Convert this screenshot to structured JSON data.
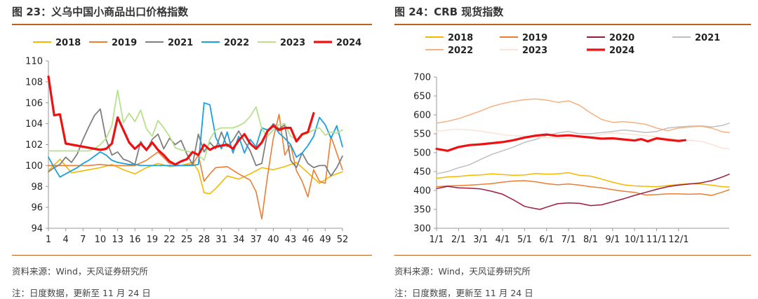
{
  "left": {
    "title": "图 23：义乌中国小商品出口价格指数",
    "source": "资料来源：Wind，天风证券研究所",
    "note": "注：日度数据，更新至 11 月 24 日",
    "chart_data": {
      "type": "line",
      "xlabel": "",
      "ylabel": "",
      "ylim": [
        94,
        110
      ],
      "yticks": [
        94,
        96,
        98,
        100,
        102,
        104,
        106,
        108,
        110
      ],
      "xlim": [
        1,
        52
      ],
      "xticks": [
        1,
        4,
        7,
        10,
        13,
        16,
        19,
        22,
        25,
        28,
        31,
        34,
        37,
        40,
        43,
        46,
        49,
        52
      ],
      "legend_position": "top",
      "series": [
        {
          "name": "2018",
          "color": "#f5b800",
          "width": 1.6,
          "x": [
            1,
            3,
            5,
            8,
            10,
            12,
            14,
            16,
            18,
            20,
            22,
            24,
            26,
            27,
            28,
            29,
            30,
            32,
            34,
            36,
            38,
            40,
            42,
            44,
            46,
            48,
            50,
            52
          ],
          "values": [
            99.5,
            100.6,
            99.3,
            99.6,
            99.8,
            100.1,
            99.6,
            99.2,
            99.8,
            100.2,
            99.9,
            100.0,
            100.3,
            99.5,
            97.4,
            97.3,
            97.8,
            99.0,
            98.7,
            99.2,
            99.8,
            99.6,
            99.9,
            100.3,
            99.3,
            98.3,
            99.0,
            99.4
          ]
        },
        {
          "name": "2019",
          "color": "#ed7d31",
          "width": 1.6,
          "x": [
            1,
            3,
            5,
            8,
            10,
            12,
            14,
            16,
            18,
            20,
            22,
            24,
            26,
            27,
            28,
            29,
            30,
            32,
            34,
            36,
            37,
            38,
            39,
            40,
            41,
            42,
            43,
            44,
            45,
            46,
            47,
            48,
            49,
            50,
            52
          ],
          "values": [
            100.0,
            100.0,
            100.0,
            100.0,
            100.1,
            100.0,
            100.0,
            100.0,
            100.5,
            101.3,
            100.2,
            100.0,
            100.1,
            101.0,
            98.5,
            99.2,
            99.8,
            99.9,
            99.2,
            98.6,
            97.5,
            94.9,
            99.0,
            102.6,
            104.9,
            101.0,
            102.0,
            99.5,
            98.5,
            97.0,
            99.6,
            98.5,
            98.3,
            102.8,
            99.6
          ]
        },
        {
          "name": "2021",
          "color": "#7f7f7f",
          "width": 1.8,
          "x": [
            1,
            2,
            3,
            4,
            5,
            6,
            7,
            8,
            9,
            10,
            11,
            12,
            13,
            14,
            15,
            16,
            17,
            18,
            19,
            20,
            21,
            22,
            23,
            24,
            25,
            26,
            27,
            28,
            29,
            30,
            31,
            32,
            33,
            34,
            35,
            36,
            37,
            38,
            39,
            40,
            41,
            42,
            43,
            44,
            45,
            46,
            47,
            48,
            49,
            50,
            51,
            52
          ],
          "values": [
            99.4,
            99.8,
            100.1,
            100.8,
            100.3,
            101.1,
            102.5,
            103.7,
            104.8,
            105.4,
            102.5,
            101.0,
            101.3,
            100.6,
            100.4,
            100.1,
            102.3,
            101.4,
            102.5,
            103.0,
            101.6,
            102.6,
            102.0,
            102.4,
            101.1,
            100.1,
            103.0,
            101.3,
            102.2,
            101.6,
            103.2,
            101.8,
            102.4,
            103.3,
            102.3,
            101.4,
            100.0,
            100.2,
            103.2,
            104.0,
            103.5,
            103.9,
            100.5,
            99.8,
            101.2,
            100.2,
            99.8,
            100.0,
            100.0,
            99.0,
            99.8,
            100.9
          ]
        },
        {
          "name": "2022",
          "color": "#1aa0e0",
          "width": 1.8,
          "x": [
            1,
            2,
            3,
            4,
            5,
            6,
            7,
            8,
            9,
            10,
            11,
            12,
            13,
            14,
            15,
            16,
            17,
            18,
            19,
            20,
            21,
            22,
            23,
            24,
            25,
            26,
            27,
            28,
            29,
            30,
            31,
            32,
            33,
            34,
            35,
            36,
            37,
            38,
            39,
            40,
            41,
            42,
            43,
            44,
            45,
            46,
            47,
            48,
            49,
            50,
            51,
            52
          ],
          "values": [
            100.8,
            99.8,
            98.9,
            99.2,
            99.5,
            99.8,
            100.2,
            100.5,
            100.9,
            101.3,
            101.0,
            100.5,
            100.3,
            100.2,
            100.1,
            100.1,
            100.0,
            100.0,
            100.0,
            100.0,
            100.0,
            100.0,
            100.0,
            100.0,
            100.0,
            100.0,
            100.1,
            106.0,
            105.8,
            102.7,
            101.6,
            103.2,
            101.2,
            102.8,
            101.2,
            102.5,
            101.8,
            103.6,
            103.4,
            103.9,
            103.1,
            102.6,
            102.0,
            100.8,
            101.2,
            101.9,
            102.8,
            104.6,
            103.9,
            102.6,
            103.8,
            101.8
          ]
        },
        {
          "name": "2023",
          "color": "#b8e08d",
          "width": 1.8,
          "x": [
            1,
            2,
            3,
            4,
            5,
            6,
            7,
            8,
            9,
            10,
            11,
            12,
            13,
            14,
            15,
            16,
            17,
            18,
            19,
            20,
            21,
            22,
            23,
            24,
            25,
            26,
            27,
            28,
            29,
            30,
            31,
            32,
            33,
            34,
            35,
            36,
            37,
            38,
            39,
            40,
            41,
            42,
            43,
            44,
            45,
            46,
            47,
            48,
            49,
            50,
            51,
            52
          ],
          "values": [
            101.4,
            101.4,
            101.4,
            101.4,
            101.4,
            101.4,
            101.4,
            101.4,
            101.6,
            102.0,
            102.6,
            103.8,
            107.2,
            104.1,
            105.0,
            104.2,
            105.3,
            103.5,
            102.8,
            104.3,
            103.6,
            102.8,
            101.7,
            101.5,
            101.4,
            101.2,
            101.0,
            100.5,
            102.5,
            103.4,
            103.6,
            103.6,
            103.6,
            103.8,
            104.1,
            104.7,
            105.6,
            103.5,
            102.8,
            103.4,
            103.9,
            104.0,
            102.8,
            102.5,
            102.9,
            103.1,
            103.4,
            103.6,
            102.9,
            103.2,
            103.1,
            103.4
          ]
        },
        {
          "name": "2024",
          "color": "#ee1111",
          "width": 3.2,
          "x": [
            1,
            2,
            3,
            4,
            5,
            6,
            7,
            8,
            9,
            10,
            11,
            12,
            13,
            14,
            15,
            16,
            17,
            18,
            19,
            20,
            21,
            22,
            23,
            24,
            25,
            26,
            27,
            28,
            29,
            30,
            31,
            32,
            33,
            34,
            35,
            36,
            37,
            38,
            39,
            40,
            41,
            42,
            43,
            44,
            45,
            46,
            47
          ],
          "values": [
            108.5,
            104.8,
            104.9,
            102.1,
            102.0,
            101.9,
            101.8,
            101.7,
            101.6,
            101.5,
            101.6,
            102.1,
            104.6,
            103.4,
            102.2,
            101.6,
            102.1,
            101.5,
            102.2,
            101.5,
            101.0,
            100.4,
            100.1,
            100.4,
            100.6,
            101.3,
            101.0,
            102.0,
            101.5,
            101.8,
            101.9,
            102.0,
            101.6,
            102.4,
            103.0,
            102.1,
            101.6,
            102.2,
            103.3,
            103.8,
            103.4,
            103.6,
            103.6,
            102.3,
            103.0,
            103.2,
            105.0
          ]
        }
      ]
    }
  },
  "right": {
    "title": "图 24：CRB 现货指数",
    "source": "资料来源：Wind，天风证券研究所",
    "note": "注：日度数据，更新至 11 月 24 日",
    "chart_data": {
      "type": "line",
      "xlabel": "",
      "ylabel": "",
      "ylim": [
        300,
        700
      ],
      "yticks": [
        300,
        350,
        400,
        450,
        500,
        550,
        600,
        650,
        700
      ],
      "xticks_labels": [
        "1/1",
        "2/1",
        "3/1",
        "4/1",
        "5/1",
        "6/1",
        "7/1",
        "8/1",
        "9/1",
        "10/1",
        "11/1",
        "12/1"
      ],
      "xlim": [
        0,
        13.3
      ],
      "legend_position": "top",
      "series": [
        {
          "name": "2018",
          "color": "#f5b800",
          "width": 1.5,
          "x": [
            0,
            0.5,
            1,
            1.5,
            2,
            2.5,
            3,
            3.5,
            4,
            4.5,
            5,
            5.5,
            6,
            6.5,
            7,
            7.5,
            8,
            8.5,
            9,
            9.5,
            10,
            10.5,
            11,
            11.5,
            12,
            12.5,
            13,
            13.3
          ],
          "values": [
            432,
            436,
            437,
            440,
            441,
            444,
            442,
            440,
            441,
            445,
            443,
            444,
            447,
            440,
            438,
            430,
            422,
            415,
            412,
            411,
            410,
            413,
            416,
            418,
            417,
            414,
            410,
            409
          ]
        },
        {
          "name": "2019",
          "color": "#ed7d31",
          "width": 1.5,
          "x": [
            0,
            0.5,
            1,
            1.5,
            2,
            2.5,
            3,
            3.5,
            4,
            4.5,
            5,
            5.5,
            6,
            6.5,
            7,
            7.5,
            8,
            8.5,
            9,
            9.5,
            10,
            10.5,
            11,
            11.5,
            12,
            12.5,
            13,
            13.3
          ],
          "values": [
            410,
            412,
            413,
            414,
            416,
            418,
            422,
            425,
            426,
            423,
            418,
            415,
            417,
            414,
            410,
            407,
            402,
            398,
            395,
            388,
            389,
            391,
            391,
            390,
            391,
            387,
            396,
            402
          ]
        },
        {
          "name": "2020",
          "color": "#9b1b3d",
          "width": 1.5,
          "x": [
            0,
            0.5,
            1,
            1.5,
            2,
            2.5,
            3,
            3.5,
            4,
            4.3,
            4.7,
            5,
            5.5,
            6,
            6.5,
            7,
            7.5,
            8,
            8.5,
            9,
            9.5,
            10,
            10.5,
            11,
            11.5,
            12,
            12.5,
            13,
            13.3
          ],
          "values": [
            405,
            411,
            407,
            406,
            404,
            398,
            390,
            375,
            358,
            354,
            350,
            356,
            365,
            367,
            366,
            360,
            362,
            370,
            378,
            387,
            395,
            403,
            410,
            414,
            417,
            420,
            426,
            436,
            443
          ]
        },
        {
          "name": "2021",
          "color": "#bfbfbf",
          "width": 1.5,
          "x": [
            0,
            0.5,
            1,
            1.5,
            2,
            2.5,
            3,
            3.5,
            4,
            4.5,
            5,
            5.5,
            6,
            6.5,
            7,
            7.5,
            8,
            8.5,
            9,
            9.5,
            10,
            10.5,
            11,
            11.5,
            12,
            12.5,
            13,
            13.3
          ],
          "values": [
            444,
            450,
            460,
            468,
            482,
            495,
            505,
            515,
            527,
            535,
            545,
            552,
            556,
            550,
            550,
            553,
            556,
            560,
            557,
            553,
            556,
            565,
            568,
            570,
            571,
            568,
            572,
            578
          ]
        },
        {
          "name": "2022",
          "color": "#f4b183",
          "width": 1.5,
          "x": [
            0,
            0.5,
            1,
            1.5,
            2,
            2.5,
            3,
            3.5,
            4,
            4.5,
            5,
            5.5,
            6,
            6.5,
            7,
            7.5,
            8,
            8.5,
            9,
            9.5,
            10,
            10.5,
            11,
            11.5,
            12,
            12.5,
            13,
            13.3
          ],
          "values": [
            578,
            583,
            590,
            600,
            610,
            622,
            630,
            636,
            640,
            642,
            639,
            633,
            637,
            625,
            605,
            588,
            580,
            582,
            579,
            575,
            565,
            558,
            565,
            568,
            570,
            565,
            555,
            553
          ]
        },
        {
          "name": "2023",
          "color": "#fbe3d6",
          "width": 1.5,
          "x": [
            0,
            0.5,
            1,
            1.5,
            2,
            2.5,
            3,
            3.5,
            4,
            4.5,
            5,
            5.5,
            6,
            6.5,
            7,
            7.5,
            8,
            8.5,
            9,
            9.5,
            10,
            10.5,
            11,
            11.5,
            12,
            12.5,
            13,
            13.3
          ],
          "values": [
            556,
            560,
            562,
            560,
            557,
            552,
            548,
            545,
            544,
            541,
            540,
            538,
            537,
            540,
            542,
            548,
            552,
            550,
            548,
            545,
            542,
            538,
            535,
            533,
            530,
            522,
            512,
            510
          ]
        },
        {
          "name": "2024",
          "color": "#ee1111",
          "width": 3.2,
          "x": [
            0,
            0.5,
            1,
            1.5,
            2,
            2.5,
            3,
            3.5,
            4,
            4.5,
            5,
            5.5,
            6,
            6.5,
            7,
            7.5,
            8,
            8.5,
            9,
            9.3,
            9.6,
            10,
            10.5,
            11,
            11.3
          ],
          "values": [
            510,
            505,
            515,
            520,
            522,
            525,
            528,
            533,
            540,
            545,
            548,
            544,
            546,
            543,
            540,
            537,
            538,
            535,
            532,
            536,
            530,
            538,
            534,
            531,
            533
          ]
        }
      ]
    }
  }
}
